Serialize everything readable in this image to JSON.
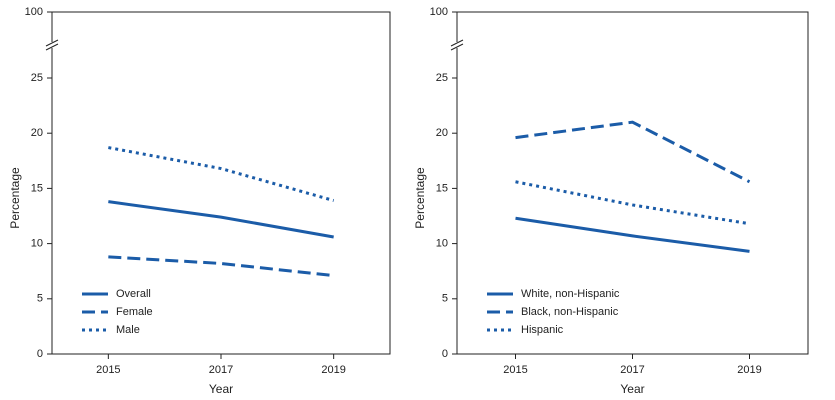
{
  "chart_data": [
    {
      "type": "line",
      "x": [
        2015,
        2017,
        2019
      ],
      "xlim": [
        2014,
        2020
      ],
      "xticks": [
        2015,
        2017,
        2019
      ],
      "ylim": [
        0,
        100
      ],
      "yticks": [
        0,
        5,
        10,
        15,
        20,
        25,
        100
      ],
      "y_break": true,
      "xlabel": "Year",
      "ylabel": "Percentage",
      "legend": "lower left",
      "series": [
        {
          "name": "Overall",
          "color": "#1b5ca8",
          "dash": "solid",
          "values": [
            13.8,
            12.4,
            10.6
          ]
        },
        {
          "name": "Female",
          "color": "#1b5ca8",
          "dash": "dashed",
          "values": [
            8.8,
            8.2,
            7.1
          ]
        },
        {
          "name": "Male",
          "color": "#1b5ca8",
          "dash": "dotted",
          "values": [
            18.7,
            16.8,
            13.9
          ]
        }
      ]
    },
    {
      "type": "line",
      "x": [
        2015,
        2017,
        2019
      ],
      "xlim": [
        2014,
        2020
      ],
      "xticks": [
        2015,
        2017,
        2019
      ],
      "ylim": [
        0,
        100
      ],
      "yticks": [
        0,
        5,
        10,
        15,
        20,
        25,
        100
      ],
      "y_break": true,
      "xlabel": "Year",
      "ylabel": "Percentage",
      "legend": "lower left",
      "series": [
        {
          "name": "White, non-Hispanic",
          "color": "#1b5ca8",
          "dash": "solid",
          "values": [
            12.3,
            10.7,
            9.3
          ]
        },
        {
          "name": "Black, non-Hispanic",
          "color": "#1b5ca8",
          "dash": "dashed",
          "values": [
            19.6,
            21.0,
            15.6
          ]
        },
        {
          "name": "Hispanic",
          "color": "#1b5ca8",
          "dash": "dotted",
          "values": [
            15.6,
            13.5,
            11.8
          ]
        }
      ]
    }
  ]
}
